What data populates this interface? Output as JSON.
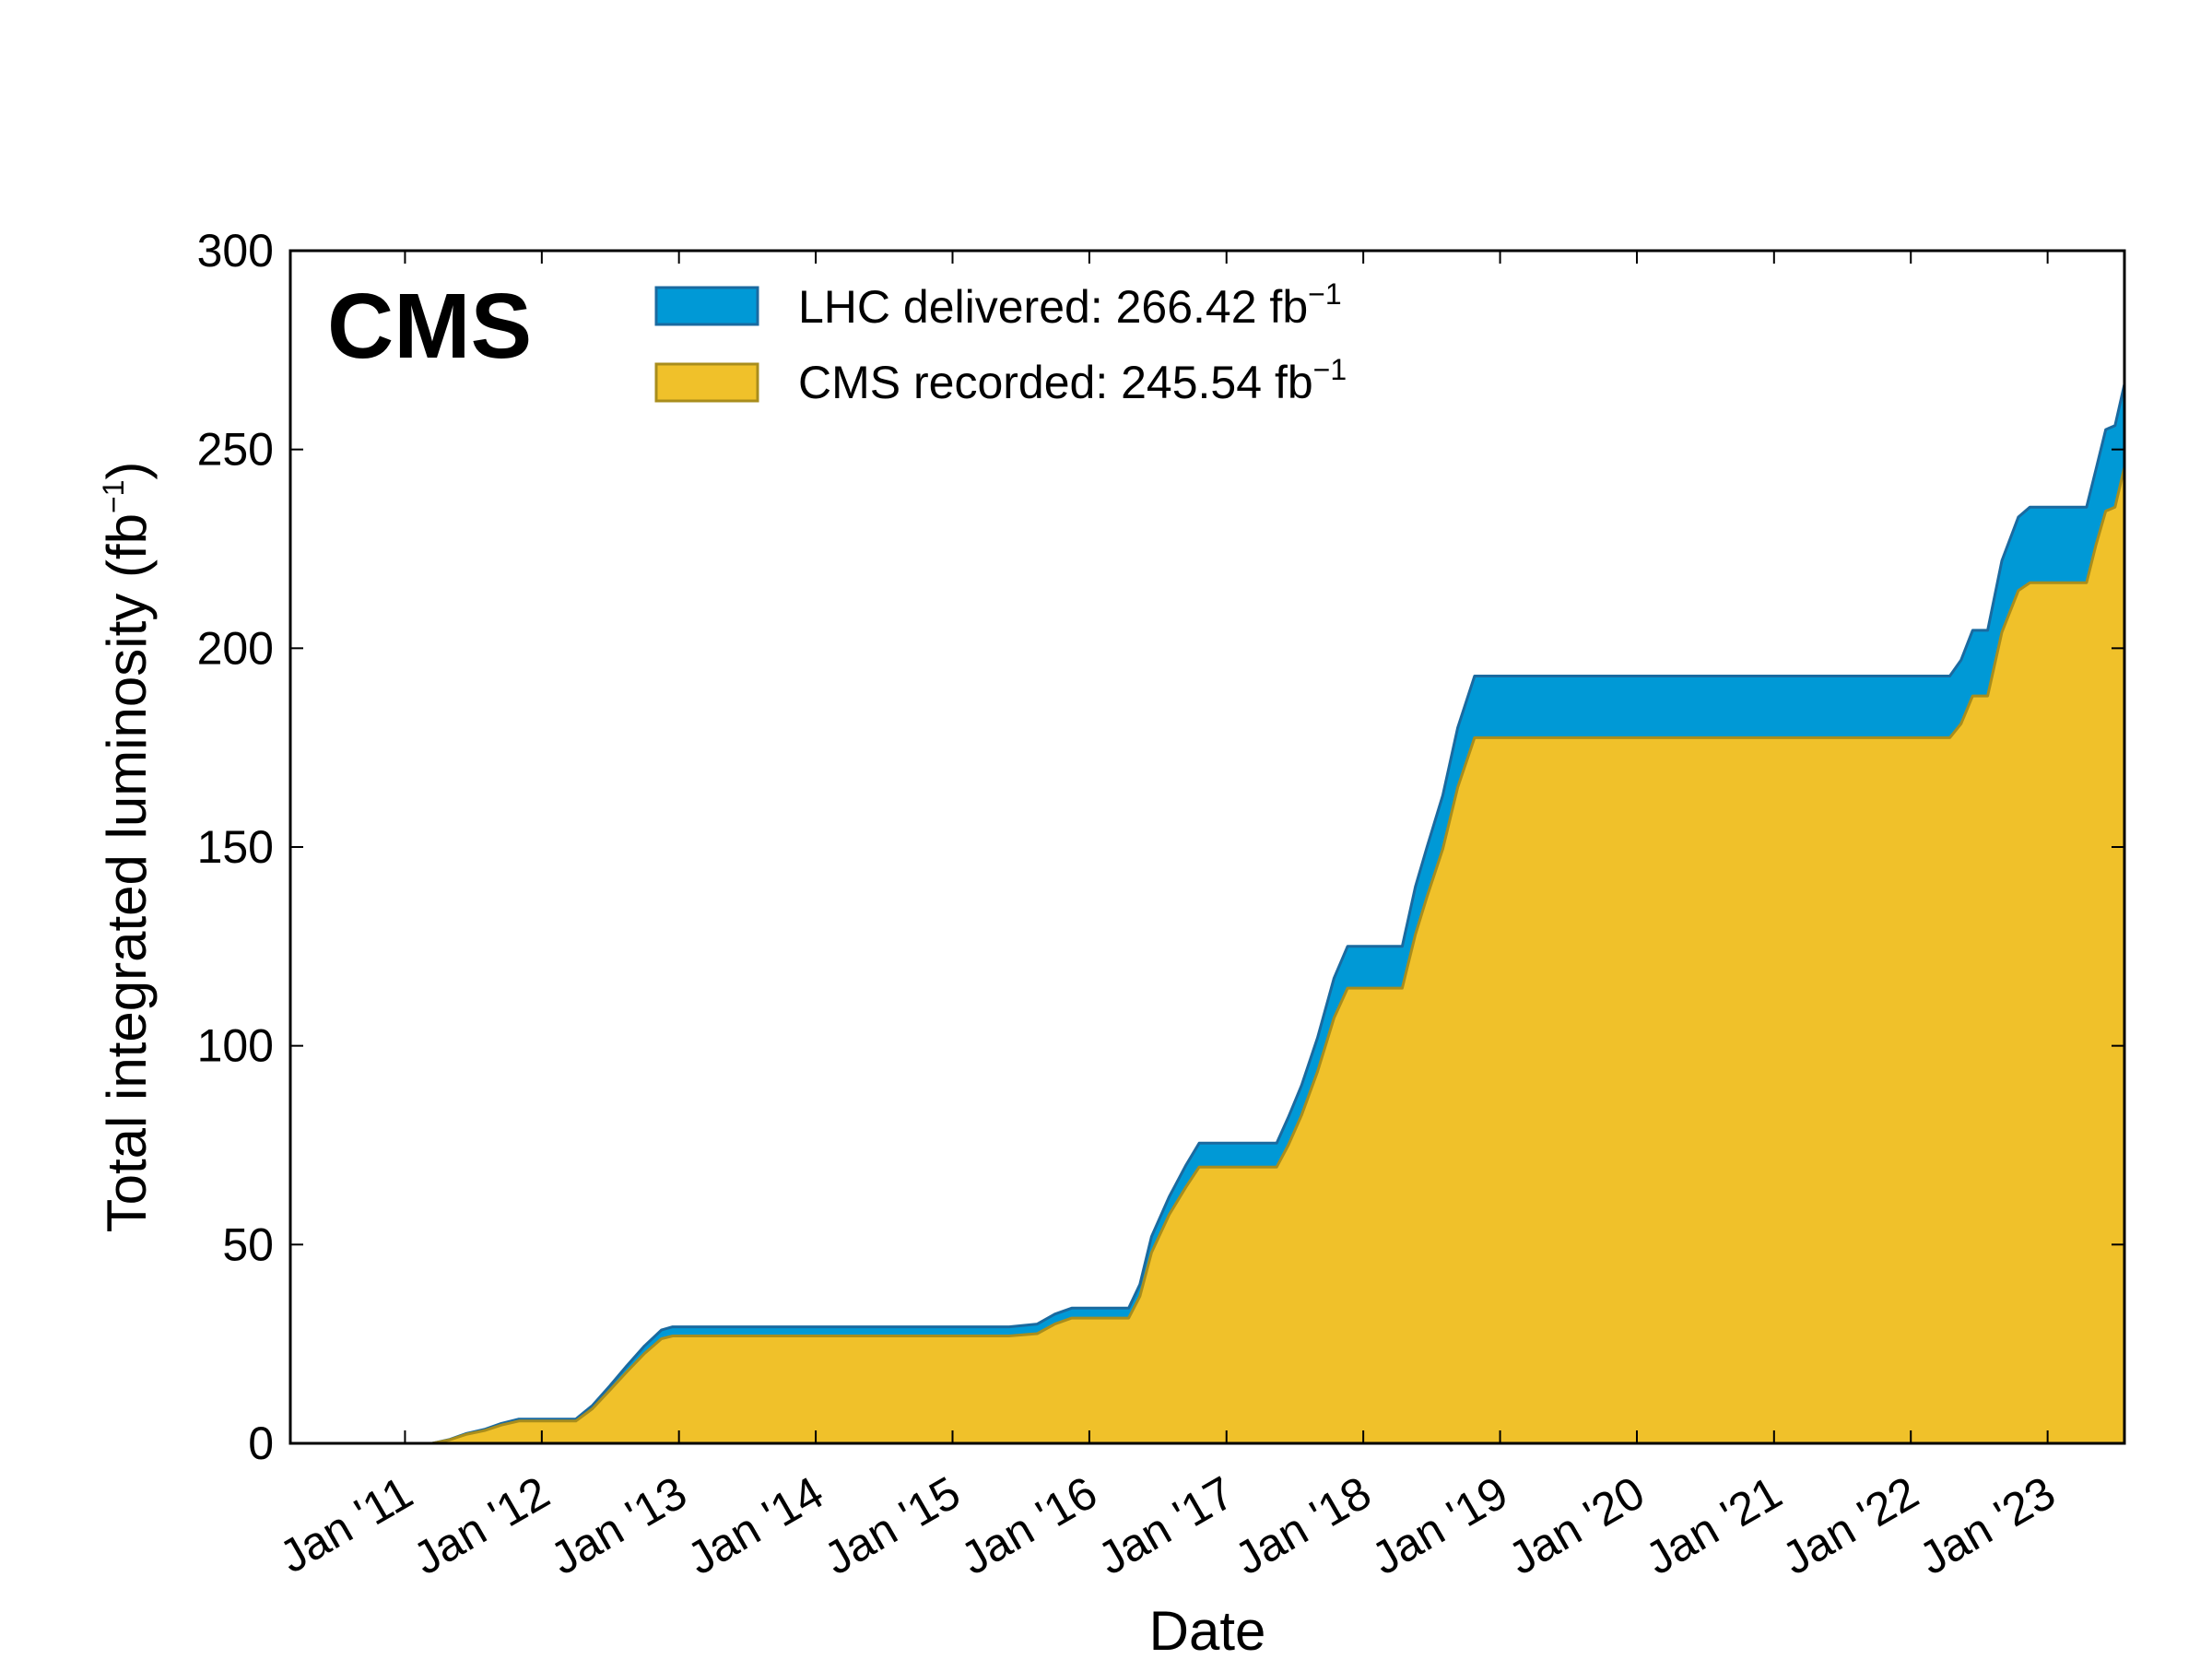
{
  "chart_data": {
    "type": "area",
    "brand_label": "CMS",
    "xlabel": "Date",
    "ylabel": "Total integrated luminosity (fb",
    "ylabel_sup": "−1",
    "ylabel_close": ")",
    "ylim": [
      0,
      300
    ],
    "xlim": [
      "2010-03-01",
      "2023-07-25"
    ],
    "x_ticks": [
      {
        "date": "2011-01-01",
        "label": "Jan '11"
      },
      {
        "date": "2012-01-01",
        "label": "Jan '12"
      },
      {
        "date": "2013-01-01",
        "label": "Jan '13"
      },
      {
        "date": "2014-01-01",
        "label": "Jan '14"
      },
      {
        "date": "2015-01-01",
        "label": "Jan '15"
      },
      {
        "date": "2016-01-01",
        "label": "Jan '16"
      },
      {
        "date": "2017-01-01",
        "label": "Jan '17"
      },
      {
        "date": "2018-01-01",
        "label": "Jan '18"
      },
      {
        "date": "2019-01-01",
        "label": "Jan '19"
      },
      {
        "date": "2020-01-01",
        "label": "Jan '20"
      },
      {
        "date": "2021-01-01",
        "label": "Jan '21"
      },
      {
        "date": "2022-01-01",
        "label": "Jan '22"
      },
      {
        "date": "2023-01-01",
        "label": "Jan '23"
      }
    ],
    "y_ticks": [
      0,
      50,
      100,
      150,
      200,
      250,
      300
    ],
    "legend_placement": "top",
    "series": [
      {
        "name": "LHC delivered: 266.42 fb",
        "name_sup": "−1",
        "color": "#0099d6",
        "edge": "#1a6aa0",
        "points": [
          [
            "2010-03-01",
            0
          ],
          [
            "2011-03-15",
            0
          ],
          [
            "2011-05-01",
            1.0
          ],
          [
            "2011-06-15",
            2.5
          ],
          [
            "2011-08-01",
            3.5
          ],
          [
            "2011-09-15",
            5.0
          ],
          [
            "2011-11-01",
            6.1
          ],
          [
            "2012-04-01",
            6.1
          ],
          [
            "2012-05-15",
            9.5
          ],
          [
            "2012-07-01",
            14.5
          ],
          [
            "2012-08-15",
            19.5
          ],
          [
            "2012-10-01",
            24.5
          ],
          [
            "2012-11-15",
            28.5
          ],
          [
            "2012-12-15",
            29.3
          ],
          [
            "2015-06-01",
            29.3
          ],
          [
            "2015-08-15",
            30.0
          ],
          [
            "2015-10-01",
            32.5
          ],
          [
            "2015-11-15",
            34.0
          ],
          [
            "2016-04-15",
            34.0
          ],
          [
            "2016-05-15",
            40.0
          ],
          [
            "2016-06-15",
            52.0
          ],
          [
            "2016-08-01",
            62.0
          ],
          [
            "2016-09-15",
            70.0
          ],
          [
            "2016-10-20",
            75.5
          ],
          [
            "2017-05-15",
            75.5
          ],
          [
            "2017-06-15",
            82.0
          ],
          [
            "2017-07-20",
            90.0
          ],
          [
            "2017-09-01",
            102.0
          ],
          [
            "2017-10-15",
            117.0
          ],
          [
            "2017-11-20",
            125.0
          ],
          [
            "2018-04-15",
            125.0
          ],
          [
            "2018-05-20",
            140.0
          ],
          [
            "2018-06-20",
            150.0
          ],
          [
            "2018-08-01",
            163.0
          ],
          [
            "2018-09-10",
            180.0
          ],
          [
            "2018-10-25",
            193.0
          ],
          [
            "2022-04-15",
            193.0
          ],
          [
            "2022-05-15",
            197.0
          ],
          [
            "2022-06-15",
            204.5
          ],
          [
            "2022-07-25",
            204.5
          ],
          [
            "2022-09-01",
            222.0
          ],
          [
            "2022-10-15",
            233.0
          ],
          [
            "2022-11-15",
            235.5
          ],
          [
            "2023-04-15",
            235.5
          ],
          [
            "2023-05-10",
            245.0
          ],
          [
            "2023-06-05",
            255.0
          ],
          [
            "2023-06-30",
            256.0
          ],
          [
            "2023-07-25",
            266.42
          ]
        ]
      },
      {
        "name": "CMS recorded: 245.54 fb",
        "name_sup": "−1",
        "color": "#f0c12a",
        "edge": "#a98d1c",
        "points": [
          [
            "2010-03-01",
            0
          ],
          [
            "2011-03-15",
            0
          ],
          [
            "2011-05-01",
            0.9
          ],
          [
            "2011-06-15",
            2.3
          ],
          [
            "2011-08-01",
            3.2
          ],
          [
            "2011-09-15",
            4.6
          ],
          [
            "2011-11-01",
            5.6
          ],
          [
            "2012-04-01",
            5.6
          ],
          [
            "2012-05-15",
            8.7
          ],
          [
            "2012-07-01",
            13.4
          ],
          [
            "2012-08-15",
            18.0
          ],
          [
            "2012-10-01",
            22.6
          ],
          [
            "2012-11-15",
            26.3
          ],
          [
            "2012-12-15",
            27.0
          ],
          [
            "2015-06-01",
            27.0
          ],
          [
            "2015-08-15",
            27.6
          ],
          [
            "2015-10-01",
            30.0
          ],
          [
            "2015-11-15",
            31.5
          ],
          [
            "2016-04-15",
            31.5
          ],
          [
            "2016-05-15",
            37.0
          ],
          [
            "2016-06-15",
            48.0
          ],
          [
            "2016-08-01",
            57.5
          ],
          [
            "2016-09-15",
            64.5
          ],
          [
            "2016-10-20",
            69.5
          ],
          [
            "2017-05-15",
            69.5
          ],
          [
            "2017-06-15",
            75.0
          ],
          [
            "2017-07-20",
            82.5
          ],
          [
            "2017-09-01",
            93.5
          ],
          [
            "2017-10-15",
            107.0
          ],
          [
            "2017-11-20",
            114.5
          ],
          [
            "2018-04-15",
            114.5
          ],
          [
            "2018-05-20",
            128.0
          ],
          [
            "2018-06-20",
            137.5
          ],
          [
            "2018-08-01",
            149.5
          ],
          [
            "2018-09-10",
            165.0
          ],
          [
            "2018-10-25",
            177.5
          ],
          [
            "2022-04-15",
            177.5
          ],
          [
            "2022-05-15",
            181.0
          ],
          [
            "2022-06-15",
            188.0
          ],
          [
            "2022-07-25",
            188.0
          ],
          [
            "2022-09-01",
            204.0
          ],
          [
            "2022-10-15",
            214.5
          ],
          [
            "2022-11-15",
            216.5
          ],
          [
            "2023-04-15",
            216.5
          ],
          [
            "2023-05-10",
            226.0
          ],
          [
            "2023-06-05",
            234.5
          ],
          [
            "2023-06-30",
            235.5
          ],
          [
            "2023-07-25",
            245.54
          ]
        ]
      }
    ]
  }
}
